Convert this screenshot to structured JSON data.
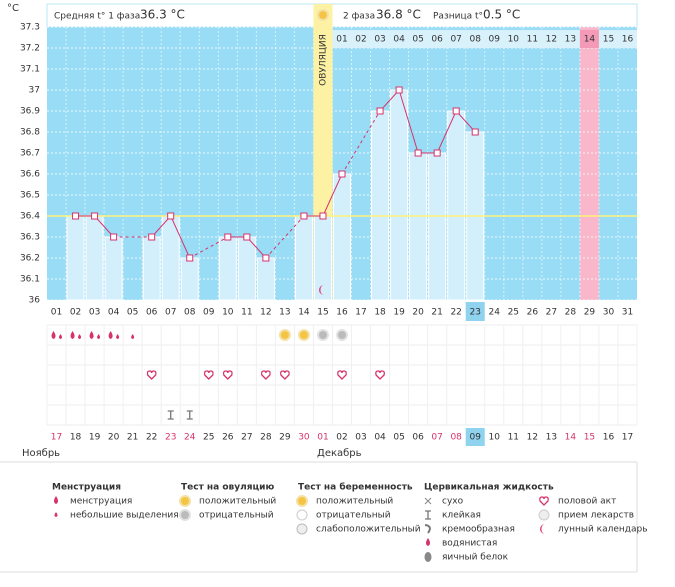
{
  "header": {
    "phase1_label": "Средняя t° 1 фаза",
    "phase1_avg": "36.3 °C",
    "phase2_label": "2 фаза",
    "phase2_avg": "36.8 °C",
    "diff_label": "Разница t°",
    "diff_value": "0.5 °C"
  },
  "chart_data": {
    "type": "line",
    "y_label": "°С",
    "categories": [
      "01",
      "02",
      "03",
      "04",
      "05",
      "06",
      "07",
      "08",
      "09",
      "10",
      "11",
      "12",
      "13",
      "14",
      "15",
      "16",
      "17",
      "18",
      "19",
      "20",
      "21",
      "22",
      "23",
      "24",
      "25",
      "26",
      "27",
      "28",
      "29",
      "30",
      "31"
    ],
    "values": [
      null,
      36.4,
      36.4,
      36.3,
      null,
      36.3,
      36.4,
      36.2,
      null,
      36.3,
      36.3,
      36.2,
      null,
      36.4,
      36.4,
      36.6,
      null,
      36.9,
      37,
      36.7,
      36.7,
      36.9,
      36.8,
      null,
      null,
      null,
      null,
      null,
      null,
      null,
      null
    ],
    "ylim": [
      36,
      37.3
    ],
    "yticks": [
      36,
      36.1,
      36.2,
      36.3,
      36.4,
      36.5,
      36.6,
      36.7,
      36.8,
      36.9,
      37,
      37.1,
      37.2,
      37.3
    ],
    "color": "#d6336c",
    "bar_color": "#d3effc",
    "background": "#99dcf5",
    "grid": true,
    "coverline": 36.4,
    "ovulation_day": 15,
    "ovulation_label": "ОВУЛЯЦИЯ",
    "phase2_days": [
      "01",
      "02",
      "03",
      "04",
      "05",
      "06",
      "07",
      "08",
      "09",
      "10",
      "11",
      "12",
      "13",
      "14",
      "15",
      "16"
    ],
    "expected_period_day": 29,
    "today": 23
  },
  "markers": {
    "menstruation": [
      {
        "day": 1,
        "kind": "heavy"
      },
      {
        "day": 2,
        "kind": "heavy"
      },
      {
        "day": 3,
        "kind": "heavy"
      },
      {
        "day": 4,
        "kind": "heavy"
      },
      {
        "day": 5,
        "kind": "light"
      }
    ],
    "ovulation_test": [
      {
        "day": 13,
        "result": "positive"
      },
      {
        "day": 14,
        "result": "positive"
      },
      {
        "day": 15,
        "result": "negative"
      },
      {
        "day": 16,
        "result": "negative"
      }
    ],
    "intercourse": [
      6,
      9,
      10,
      12,
      13,
      16,
      18
    ],
    "cervical_fluid": [
      {
        "day": 7,
        "kind": "sticky"
      },
      {
        "day": 8,
        "kind": "sticky"
      }
    ],
    "lunar": [
      15
    ]
  },
  "calendar": {
    "dates": [
      "17",
      "18",
      "19",
      "20",
      "21",
      "22",
      "23",
      "24",
      "25",
      "26",
      "27",
      "28",
      "29",
      "30",
      "01",
      "02",
      "03",
      "04",
      "05",
      "06",
      "07",
      "08",
      "09",
      "10",
      "11",
      "12",
      "13",
      "14",
      "15",
      "16",
      "17"
    ],
    "weekend": [
      true,
      false,
      false,
      false,
      false,
      false,
      true,
      true,
      false,
      false,
      false,
      false,
      false,
      true,
      true,
      false,
      false,
      false,
      false,
      false,
      true,
      true,
      false,
      false,
      false,
      false,
      false,
      true,
      true,
      false,
      false
    ]
  },
  "months": [
    "Ноябрь",
    "Декабрь"
  ],
  "legend": [
    {
      "title": "Менструация",
      "items": [
        "менструация",
        "небольшие выделения"
      ]
    },
    {
      "title": "Тест на овуляцию",
      "items": [
        "положительный",
        "отрицательный"
      ]
    },
    {
      "title": "Тест на беременность",
      "items": [
        "положительный",
        "отрицательный",
        "слабоположительный"
      ]
    },
    {
      "title": "Цервикальная жидкость",
      "items": [
        "сухо",
        "клейкая",
        "кремообразная",
        "водянистая",
        "яичный белок"
      ]
    },
    {
      "items": [
        "половой акт",
        "прием лекарств",
        "лунный календарь"
      ]
    }
  ]
}
